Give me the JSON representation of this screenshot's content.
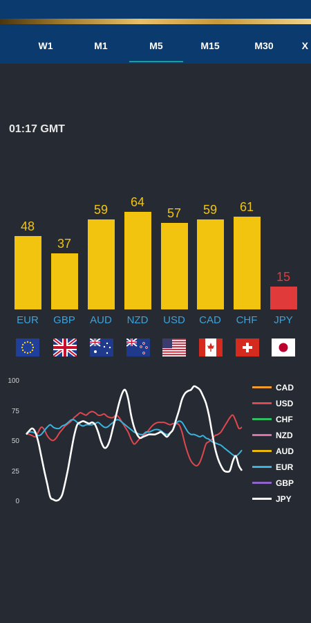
{
  "tabs": [
    {
      "label": "W1",
      "active": false
    },
    {
      "label": "M1",
      "active": false
    },
    {
      "label": "M5",
      "active": true
    },
    {
      "label": "M15",
      "active": false
    },
    {
      "label": "M30",
      "active": false
    },
    {
      "label": "X",
      "active": false
    }
  ],
  "time_label": "01:17 GMT",
  "strength": [
    {
      "currency": "EUR",
      "value": 48,
      "color": "#f2c40f",
      "flag": "eu"
    },
    {
      "currency": "GBP",
      "value": 37,
      "color": "#f2c40f",
      "flag": "uk"
    },
    {
      "currency": "AUD",
      "value": 59,
      "color": "#f2c40f",
      "flag": "au"
    },
    {
      "currency": "NZD",
      "value": 64,
      "color": "#f2c40f",
      "flag": "nz"
    },
    {
      "currency": "USD",
      "value": 57,
      "color": "#f2c40f",
      "flag": "us"
    },
    {
      "currency": "CAD",
      "value": 59,
      "color": "#f2c40f",
      "flag": "ca"
    },
    {
      "currency": "CHF",
      "value": 61,
      "color": "#f2c40f",
      "flag": "ch"
    },
    {
      "currency": "JPY",
      "value": 15,
      "color": "#e03a3a",
      "flag": "jp"
    }
  ],
  "chart_data": {
    "type": "line",
    "yticks": [
      "0",
      "25",
      "50",
      "75",
      "100"
    ],
    "ylim": [
      0,
      100
    ],
    "series": [
      {
        "name": "CAD",
        "color": "#f39c2c",
        "values": []
      },
      {
        "name": "USD",
        "color": "#e0474f",
        "values": [
          57,
          56,
          55,
          54,
          58,
          62,
          60,
          55,
          52,
          51,
          53,
          57,
          60,
          63,
          65,
          67,
          70,
          72,
          74,
          73,
          72,
          74,
          75,
          74,
          72,
          72,
          73,
          71,
          70,
          70,
          72,
          70,
          66,
          62,
          58,
          52,
          48,
          50,
          53,
          55,
          57,
          60,
          63,
          65,
          66,
          66,
          66,
          65,
          64,
          65,
          65,
          64,
          58,
          48,
          40,
          34,
          31,
          30,
          33,
          40,
          48,
          50,
          52,
          55,
          56,
          58,
          62,
          66,
          70,
          72,
          67,
          61,
          62
        ]
      },
      {
        "name": "CHF",
        "color": "#2fbf62",
        "values": []
      },
      {
        "name": "NZD",
        "color": "#e06fa8",
        "values": []
      },
      {
        "name": "AUD",
        "color": "#e8b80f",
        "values": []
      },
      {
        "name": "EUR",
        "color": "#3ab3de",
        "values": [
          57,
          58,
          58,
          57,
          55,
          56,
          59,
          62,
          64,
          62,
          61,
          61,
          63,
          64,
          66,
          68,
          68,
          66,
          64,
          63,
          64,
          64,
          64,
          65,
          66,
          64,
          62,
          62,
          64,
          66,
          68,
          68,
          66,
          64,
          62,
          60,
          58,
          57,
          56,
          56,
          58,
          58,
          59,
          60,
          60,
          59,
          57,
          56,
          57,
          60,
          65,
          67,
          66,
          62,
          58,
          56,
          56,
          55,
          54,
          55,
          53,
          52,
          50,
          49,
          48,
          47,
          45,
          43,
          41,
          39,
          38,
          40,
          43
        ]
      },
      {
        "name": "GBP",
        "color": "#8e64c9",
        "values": []
      },
      {
        "name": "JPY",
        "color": "#ffffff",
        "values": [
          56,
          59,
          61,
          58,
          50,
          38,
          26,
          15,
          4,
          2,
          1,
          2,
          6,
          16,
          28,
          42,
          55,
          64,
          66,
          67,
          66,
          65,
          66,
          64,
          58,
          50,
          45,
          46,
          52,
          62,
          72,
          82,
          90,
          93,
          86,
          72,
          62,
          56,
          53,
          54,
          55,
          56,
          56,
          56,
          57,
          58,
          56,
          54,
          57,
          60,
          68,
          76,
          85,
          90,
          92,
          93,
          96,
          95,
          93,
          88,
          82,
          72,
          58,
          45,
          36,
          30,
          26,
          25,
          26,
          34,
          38,
          30,
          26
        ]
      }
    ]
  }
}
